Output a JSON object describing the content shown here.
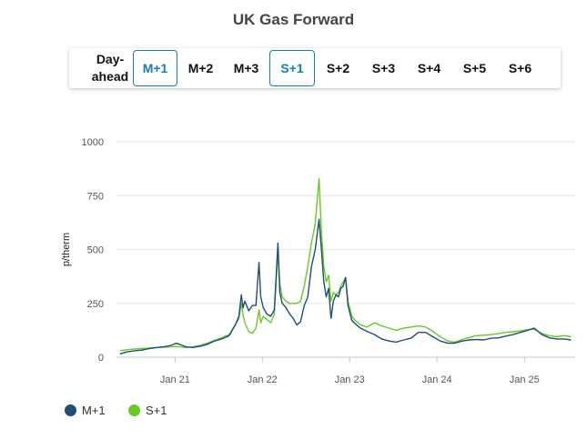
{
  "title": "UK Gas Forward",
  "tabs": [
    {
      "label": "Day-ahead",
      "active": false
    },
    {
      "label": "M+1",
      "active": true
    },
    {
      "label": "M+2",
      "active": false
    },
    {
      "label": "M+3",
      "active": false
    },
    {
      "label": "S+1",
      "active": true
    },
    {
      "label": "S+2",
      "active": false
    },
    {
      "label": "S+3",
      "active": false
    },
    {
      "label": "S+4",
      "active": false
    },
    {
      "label": "S+5",
      "active": false
    },
    {
      "label": "S+6",
      "active": false
    }
  ],
  "colors": {
    "accent": "#1a7db0",
    "m1": "#1f4e79",
    "s1": "#66cc22"
  },
  "chart_data": {
    "type": "line",
    "title": "UK Gas Forward",
    "ylabel": "p/therm",
    "xlabel": "",
    "ylim": [
      0,
      1000
    ],
    "yticks": [
      0,
      250,
      500,
      750,
      1000
    ],
    "xlim": [
      "2020-05-01",
      "2025-08-01"
    ],
    "xticks": [
      {
        "date": "2021-01-01",
        "label": "Jan 21"
      },
      {
        "date": "2022-01-01",
        "label": "Jan 22"
      },
      {
        "date": "2023-01-01",
        "label": "Jan 23"
      },
      {
        "date": "2024-01-01",
        "label": "Jan 24"
      },
      {
        "date": "2025-01-01",
        "label": "Jan 25"
      }
    ],
    "grid": true,
    "legend_position": "bottom-left",
    "series": [
      {
        "name": "M+1",
        "points": [
          [
            "2020-05-15",
            15
          ],
          [
            "2020-06-15",
            25
          ],
          [
            "2020-07-15",
            30
          ],
          [
            "2020-08-15",
            33
          ],
          [
            "2020-09-15",
            40
          ],
          [
            "2020-10-15",
            45
          ],
          [
            "2020-11-15",
            48
          ],
          [
            "2020-12-15",
            55
          ],
          [
            "2021-01-05",
            65
          ],
          [
            "2021-01-20",
            60
          ],
          [
            "2021-02-15",
            48
          ],
          [
            "2021-03-15",
            45
          ],
          [
            "2021-04-15",
            50
          ],
          [
            "2021-05-15",
            60
          ],
          [
            "2021-06-15",
            75
          ],
          [
            "2021-07-15",
            85
          ],
          [
            "2021-08-15",
            100
          ],
          [
            "2021-09-10",
            150
          ],
          [
            "2021-09-25",
            190
          ],
          [
            "2021-10-05",
            290
          ],
          [
            "2021-10-12",
            230
          ],
          [
            "2021-10-20",
            260
          ],
          [
            "2021-11-05",
            215
          ],
          [
            "2021-11-20",
            240
          ],
          [
            "2021-12-05",
            240
          ],
          [
            "2021-12-18",
            440
          ],
          [
            "2021-12-25",
            280
          ],
          [
            "2022-01-05",
            230
          ],
          [
            "2022-01-20",
            200
          ],
          [
            "2022-02-05",
            190
          ],
          [
            "2022-02-20",
            220
          ],
          [
            "2022-03-07",
            530
          ],
          [
            "2022-03-15",
            300
          ],
          [
            "2022-03-25",
            250
          ],
          [
            "2022-04-10",
            230
          ],
          [
            "2022-04-25",
            200
          ],
          [
            "2022-05-10",
            180
          ],
          [
            "2022-05-25",
            150
          ],
          [
            "2022-06-10",
            165
          ],
          [
            "2022-06-25",
            240
          ],
          [
            "2022-07-10",
            280
          ],
          [
            "2022-07-25",
            420
          ],
          [
            "2022-08-10",
            500
          ],
          [
            "2022-08-26",
            640
          ],
          [
            "2022-09-05",
            500
          ],
          [
            "2022-09-15",
            350
          ],
          [
            "2022-09-25",
            280
          ],
          [
            "2022-10-05",
            320
          ],
          [
            "2022-10-15",
            180
          ],
          [
            "2022-10-25",
            260
          ],
          [
            "2022-11-05",
            290
          ],
          [
            "2022-11-15",
            280
          ],
          [
            "2022-11-25",
            320
          ],
          [
            "2022-12-05",
            330
          ],
          [
            "2022-12-15",
            370
          ],
          [
            "2022-12-25",
            240
          ],
          [
            "2023-01-10",
            170
          ],
          [
            "2023-01-25",
            155
          ],
          [
            "2023-02-15",
            135
          ],
          [
            "2023-03-15",
            120
          ],
          [
            "2023-04-15",
            105
          ],
          [
            "2023-05-15",
            85
          ],
          [
            "2023-06-15",
            75
          ],
          [
            "2023-07-15",
            70
          ],
          [
            "2023-08-15",
            80
          ],
          [
            "2023-09-15",
            88
          ],
          [
            "2023-10-15",
            115
          ],
          [
            "2023-11-15",
            115
          ],
          [
            "2023-12-15",
            95
          ],
          [
            "2024-01-15",
            75
          ],
          [
            "2024-02-15",
            65
          ],
          [
            "2024-03-15",
            65
          ],
          [
            "2024-04-15",
            75
          ],
          [
            "2024-05-15",
            80
          ],
          [
            "2024-06-15",
            82
          ],
          [
            "2024-07-15",
            80
          ],
          [
            "2024-08-15",
            88
          ],
          [
            "2024-09-15",
            90
          ],
          [
            "2024-10-15",
            98
          ],
          [
            "2024-11-15",
            105
          ],
          [
            "2024-12-15",
            115
          ],
          [
            "2025-01-15",
            125
          ],
          [
            "2025-02-10",
            135
          ],
          [
            "2025-03-15",
            105
          ],
          [
            "2025-04-15",
            90
          ],
          [
            "2025-05-15",
            85
          ],
          [
            "2025-06-15",
            85
          ],
          [
            "2025-07-15",
            80
          ]
        ]
      },
      {
        "name": "S+1",
        "points": [
          [
            "2020-05-15",
            30
          ],
          [
            "2020-06-15",
            35
          ],
          [
            "2020-07-15",
            38
          ],
          [
            "2020-08-15",
            40
          ],
          [
            "2020-09-15",
            42
          ],
          [
            "2020-10-15",
            44
          ],
          [
            "2020-11-15",
            46
          ],
          [
            "2020-12-15",
            48
          ],
          [
            "2021-01-05",
            50
          ],
          [
            "2021-01-20",
            48
          ],
          [
            "2021-02-15",
            45
          ],
          [
            "2021-03-15",
            48
          ],
          [
            "2021-04-15",
            55
          ],
          [
            "2021-05-15",
            65
          ],
          [
            "2021-06-15",
            78
          ],
          [
            "2021-07-15",
            90
          ],
          [
            "2021-08-15",
            105
          ],
          [
            "2021-09-10",
            150
          ],
          [
            "2021-09-25",
            180
          ],
          [
            "2021-10-05",
            250
          ],
          [
            "2021-10-12",
            200
          ],
          [
            "2021-10-20",
            160
          ],
          [
            "2021-11-05",
            120
          ],
          [
            "2021-11-20",
            110
          ],
          [
            "2021-12-05",
            135
          ],
          [
            "2021-12-18",
            220
          ],
          [
            "2021-12-25",
            160
          ],
          [
            "2022-01-05",
            190
          ],
          [
            "2022-01-20",
            175
          ],
          [
            "2022-02-05",
            160
          ],
          [
            "2022-02-20",
            200
          ],
          [
            "2022-03-07",
            490
          ],
          [
            "2022-03-15",
            340
          ],
          [
            "2022-03-25",
            280
          ],
          [
            "2022-04-10",
            260
          ],
          [
            "2022-04-25",
            250
          ],
          [
            "2022-05-10",
            250
          ],
          [
            "2022-05-25",
            250
          ],
          [
            "2022-06-10",
            260
          ],
          [
            "2022-06-25",
            330
          ],
          [
            "2022-07-10",
            420
          ],
          [
            "2022-07-25",
            530
          ],
          [
            "2022-08-10",
            620
          ],
          [
            "2022-08-26",
            830
          ],
          [
            "2022-09-05",
            580
          ],
          [
            "2022-09-15",
            420
          ],
          [
            "2022-09-25",
            350
          ],
          [
            "2022-10-05",
            380
          ],
          [
            "2022-10-15",
            260
          ],
          [
            "2022-10-25",
            300
          ],
          [
            "2022-11-05",
            290
          ],
          [
            "2022-11-15",
            300
          ],
          [
            "2022-11-25",
            330
          ],
          [
            "2022-12-05",
            350
          ],
          [
            "2022-12-15",
            370
          ],
          [
            "2022-12-25",
            260
          ],
          [
            "2023-01-10",
            190
          ],
          [
            "2023-01-25",
            170
          ],
          [
            "2023-02-15",
            150
          ],
          [
            "2023-03-15",
            140
          ],
          [
            "2023-04-15",
            160
          ],
          [
            "2023-05-15",
            145
          ],
          [
            "2023-06-15",
            135
          ],
          [
            "2023-07-15",
            125
          ],
          [
            "2023-08-15",
            135
          ],
          [
            "2023-09-15",
            140
          ],
          [
            "2023-10-15",
            145
          ],
          [
            "2023-11-15",
            140
          ],
          [
            "2023-12-15",
            120
          ],
          [
            "2024-01-15",
            95
          ],
          [
            "2024-02-15",
            75
          ],
          [
            "2024-03-15",
            70
          ],
          [
            "2024-04-15",
            82
          ],
          [
            "2024-05-15",
            92
          ],
          [
            "2024-06-15",
            100
          ],
          [
            "2024-07-15",
            102
          ],
          [
            "2024-08-15",
            105
          ],
          [
            "2024-09-15",
            110
          ],
          [
            "2024-10-15",
            115
          ],
          [
            "2024-11-15",
            118
          ],
          [
            "2024-12-15",
            122
          ],
          [
            "2025-01-15",
            128
          ],
          [
            "2025-02-10",
            130
          ],
          [
            "2025-03-15",
            110
          ],
          [
            "2025-04-15",
            100
          ],
          [
            "2025-05-15",
            95
          ],
          [
            "2025-06-15",
            100
          ],
          [
            "2025-07-15",
            95
          ]
        ]
      }
    ]
  },
  "legend": [
    {
      "label": "M+1",
      "color": "#1f4e79"
    },
    {
      "label": "S+1",
      "color": "#66cc22"
    }
  ]
}
